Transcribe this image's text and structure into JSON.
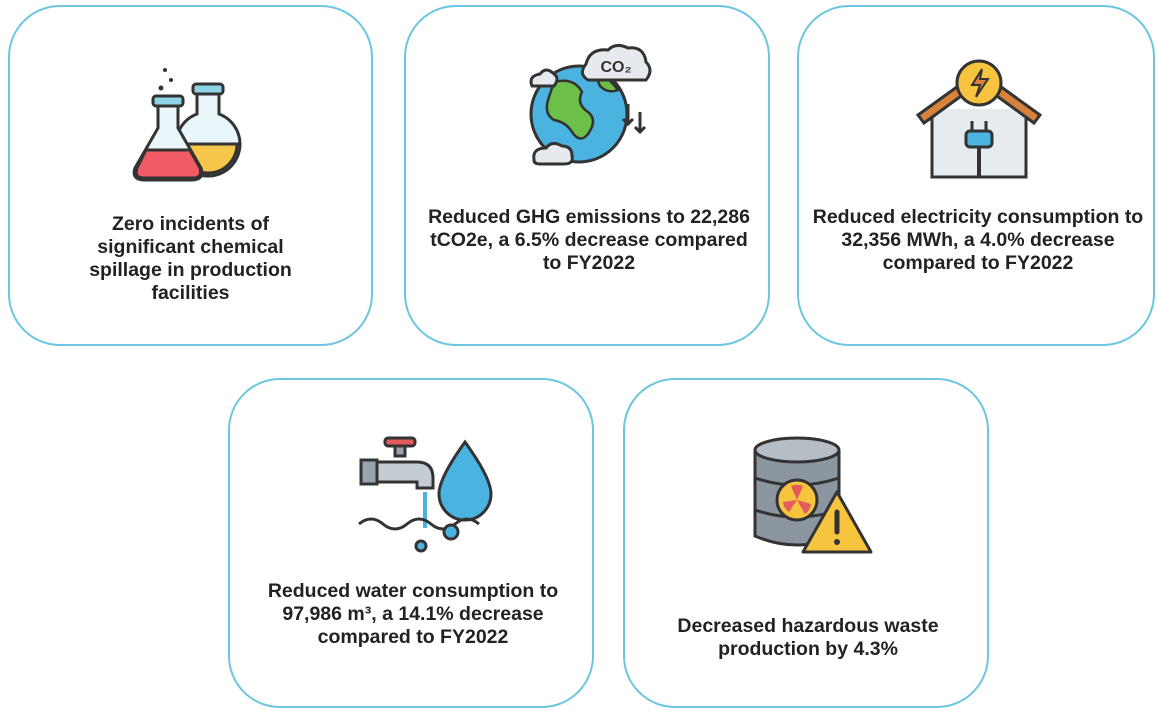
{
  "cards": [
    {
      "text": "Zero incidents of significant chemical spillage in production facilities"
    },
    {
      "text": "Reduced GHG emissions to 22,286 tCO2e, a 6.5% decrease compared to FY2022"
    },
    {
      "text": "Reduced electricity consumption to 32,356 MWh, a 4.0% decrease compared to FY2022"
    },
    {
      "text": "Reduced water consumption to 97,986 m³, a 14.1% decrease compared to FY2022"
    },
    {
      "text": "Decreased hazardous waste production by 4.3%"
    }
  ]
}
